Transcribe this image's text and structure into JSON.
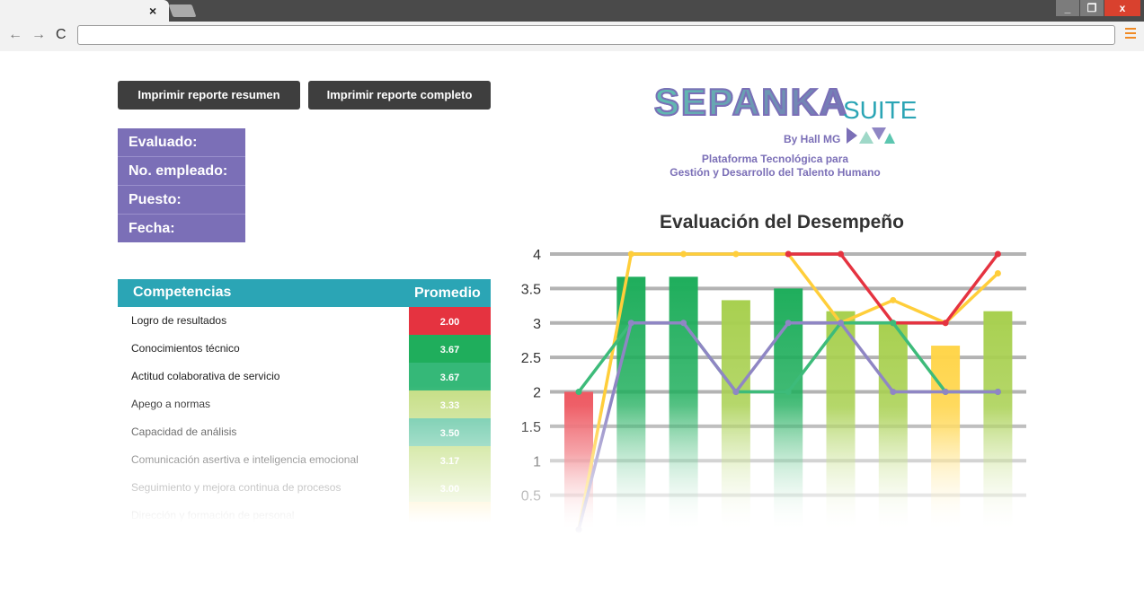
{
  "browser": {
    "tab_close": "×",
    "url": "",
    "window_buttons": {
      "minimize": "_",
      "maximize": "❐",
      "close": "x"
    },
    "nav": {
      "back": "←",
      "forward": "→",
      "reload": "C"
    }
  },
  "buttons": {
    "resumen": "Imprimir reporte resumen",
    "completo": "Imprimir reporte completo"
  },
  "info": {
    "evaluado": "Evaluado:",
    "empleado": "No. empleado:",
    "puesto": "Puesto:",
    "fecha": "Fecha:"
  },
  "logo": {
    "word": "SEPANKA",
    "suite": "SUITE",
    "by": "By Hall MG",
    "tagline1": "Plataforma Tecnológica para",
    "tagline2": "Gestión y Desarrollo del Talento Humano"
  },
  "table": {
    "header_competencias": "Competencias",
    "header_promedio": "Promedio",
    "rows": [
      {
        "name": "Logro de resultados",
        "value": "2.00",
        "color": "#e53340"
      },
      {
        "name": "Conocimientos técnico",
        "value": "3.67",
        "color": "#1fae5c"
      },
      {
        "name": "Actitud colaborativa de servicio",
        "value": "3.67",
        "color": "#35b878"
      },
      {
        "name": "Apego a normas",
        "value": "3.33",
        "color": "#c5de84"
      },
      {
        "name": "Capacidad de análisis",
        "value": "3.50",
        "color": "#5cc4a0"
      },
      {
        "name": "Comunicación asertiva e inteligencia emocional",
        "value": "3.17",
        "color": "#b8d96a"
      },
      {
        "name": "Seguimiento y mejora continua de procesos",
        "value": "3.00",
        "color": "#b8d96a"
      },
      {
        "name": "Dirección y formación de personal",
        "value": "",
        "color": "#ffd65c"
      }
    ]
  },
  "chart_data": {
    "type": "bar",
    "title": "Evaluación del Desempeño",
    "ylim": [
      0,
      4
    ],
    "yticks": [
      "0.5",
      "1",
      "1.5",
      "2",
      "2.5",
      "3",
      "3.5",
      "4"
    ],
    "grid": true,
    "bars": {
      "values": [
        2.0,
        3.67,
        3.67,
        3.33,
        3.5,
        3.17,
        3.0,
        2.67,
        3.17
      ],
      "colors": [
        "#ee5a63",
        "#1fae5c",
        "#1fae5c",
        "#a8d050",
        "#1fae5c",
        "#a8d050",
        "#a8d050",
        "#ffd54a",
        "#a8d050"
      ]
    },
    "series": [
      {
        "color": "#ffce3a",
        "values": [
          0,
          4,
          4,
          4,
          4,
          3,
          3.33,
          3,
          3.72
        ]
      },
      {
        "color": "#e53340",
        "values": [
          null,
          null,
          null,
          null,
          4,
          4,
          3,
          3,
          4
        ]
      },
      {
        "color": "#3dbb7a",
        "values": [
          2,
          3,
          3,
          2,
          2,
          3,
          3,
          2,
          2
        ]
      },
      {
        "color": "#8f86c4",
        "values": [
          0,
          3,
          3,
          2,
          3,
          3,
          2,
          2,
          2
        ]
      }
    ]
  }
}
